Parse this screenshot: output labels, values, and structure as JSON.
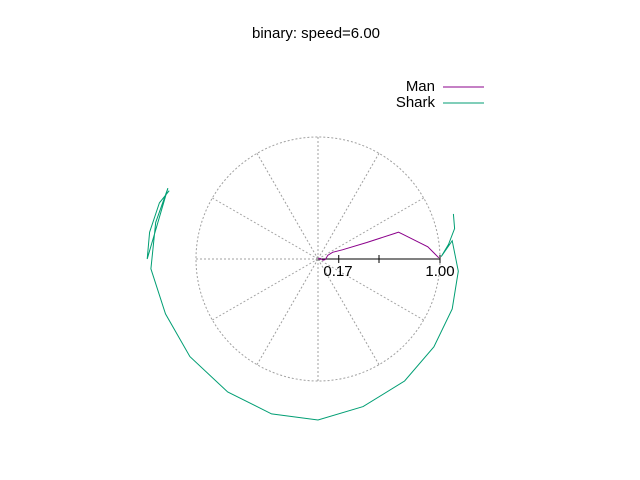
{
  "chart_data": {
    "type": "line",
    "title": "binary: speed=6.00",
    "polar": true,
    "grid": true,
    "grid_spokes_deg": 30,
    "grid_rings": [
      0.017,
      1.0
    ],
    "rlim": [
      0,
      1.0
    ],
    "r_tick_labels": [
      "0.17",
      "1.00"
    ],
    "r_ticks": [
      0.17,
      0.5,
      1.0
    ],
    "legend_position": "top-right",
    "series": [
      {
        "name": "Man",
        "color": "#8b008b",
        "points": [
          {
            "x": 0.0,
            "y": 0.0
          },
          {
            "x": 0.02,
            "y": 0.005
          },
          {
            "x": 0.04,
            "y": -0.01
          },
          {
            "x": 0.06,
            "y": -0.005
          },
          {
            "x": 0.08,
            "y": 0.03
          },
          {
            "x": 0.12,
            "y": 0.055
          },
          {
            "x": 0.2,
            "y": 0.075
          },
          {
            "x": 0.4,
            "y": 0.135
          },
          {
            "x": 0.63,
            "y": 0.21
          },
          {
            "x": 0.66,
            "y": 0.22
          },
          {
            "x": 0.7,
            "y": 0.2
          },
          {
            "x": 0.8,
            "y": 0.15
          },
          {
            "x": 0.9,
            "y": 0.1
          },
          {
            "x": 0.95,
            "y": 0.05
          },
          {
            "x": 0.99,
            "y": 0.01
          }
        ]
      },
      {
        "name": "Shark",
        "color": "#009e73",
        "points": [
          {
            "x": 1.11,
            "y": 0.37
          },
          {
            "x": 1.12,
            "y": 0.25
          },
          {
            "x": 1.07,
            "y": 0.12
          },
          {
            "x": 1.01,
            "y": 0.02
          },
          {
            "x": 1.1,
            "y": 0.15
          },
          {
            "x": 1.15,
            "y": -0.1
          },
          {
            "x": 1.1,
            "y": -0.41
          },
          {
            "x": 0.95,
            "y": -0.72
          },
          {
            "x": 0.71,
            "y": -1.0
          },
          {
            "x": 0.37,
            "y": -1.21
          },
          {
            "x": 0.0,
            "y": -1.32
          },
          {
            "x": -0.38,
            "y": -1.27
          },
          {
            "x": -0.74,
            "y": -1.09
          },
          {
            "x": -1.05,
            "y": -0.8
          },
          {
            "x": -1.25,
            "y": -0.45
          },
          {
            "x": -1.37,
            "y": -0.08
          },
          {
            "x": -1.33,
            "y": 0.3
          },
          {
            "x": -1.23,
            "y": 0.58
          },
          {
            "x": -1.4,
            "y": 0.0
          },
          {
            "x": -1.38,
            "y": 0.22
          },
          {
            "x": -1.3,
            "y": 0.46
          },
          {
            "x": -1.22,
            "y": 0.56
          }
        ]
      }
    ]
  }
}
